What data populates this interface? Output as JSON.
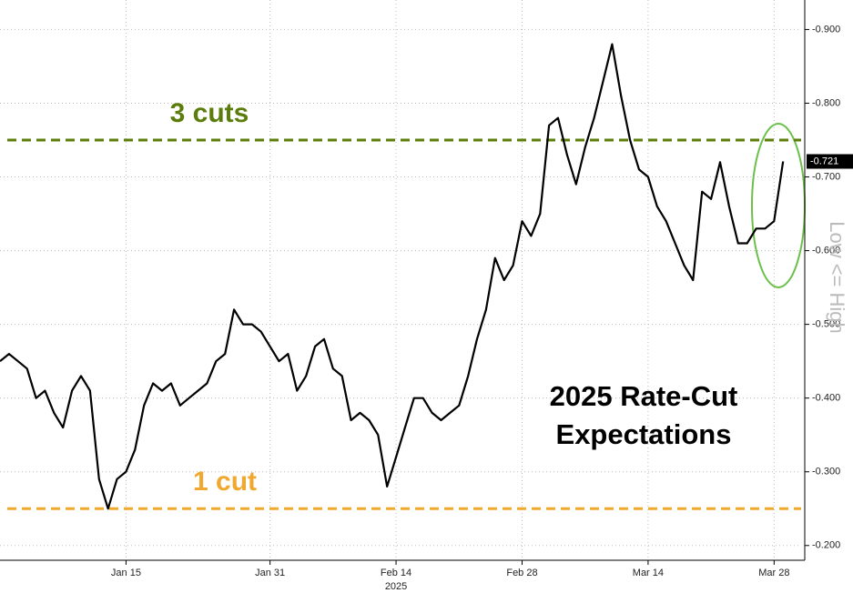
{
  "chart_data": {
    "type": "line",
    "annotation": [
      "2025 Rate-Cut",
      "Expectations"
    ],
    "y_axis_label": "Low <= High",
    "year_label": "2025",
    "current_value_tag": "-0.721",
    "x": [
      "2025-01-01",
      "2025-01-02",
      "2025-01-03",
      "2025-01-04",
      "2025-01-05",
      "2025-01-06",
      "2025-01-07",
      "2025-01-08",
      "2025-01-09",
      "2025-01-10",
      "2025-01-11",
      "2025-01-12",
      "2025-01-13",
      "2025-01-14",
      "2025-01-15",
      "2025-01-16",
      "2025-01-17",
      "2025-01-18",
      "2025-01-19",
      "2025-01-20",
      "2025-01-21",
      "2025-01-22",
      "2025-01-23",
      "2025-01-24",
      "2025-01-25",
      "2025-01-26",
      "2025-01-27",
      "2025-01-28",
      "2025-01-29",
      "2025-01-30",
      "2025-01-31",
      "2025-02-01",
      "2025-02-02",
      "2025-02-03",
      "2025-02-04",
      "2025-02-05",
      "2025-02-06",
      "2025-02-07",
      "2025-02-08",
      "2025-02-09",
      "2025-02-10",
      "2025-02-11",
      "2025-02-12",
      "2025-02-13",
      "2025-02-14",
      "2025-02-15",
      "2025-02-16",
      "2025-02-17",
      "2025-02-18",
      "2025-02-19",
      "2025-02-20",
      "2025-02-21",
      "2025-02-22",
      "2025-02-23",
      "2025-02-24",
      "2025-02-25",
      "2025-02-26",
      "2025-02-27",
      "2025-02-28",
      "2025-03-01",
      "2025-03-02",
      "2025-03-03",
      "2025-03-04",
      "2025-03-05",
      "2025-03-06",
      "2025-03-07",
      "2025-03-08",
      "2025-03-09",
      "2025-03-10",
      "2025-03-11",
      "2025-03-12",
      "2025-03-13",
      "2025-03-14",
      "2025-03-15",
      "2025-03-16",
      "2025-03-17",
      "2025-03-18",
      "2025-03-19",
      "2025-03-20",
      "2025-03-21",
      "2025-03-22",
      "2025-03-23",
      "2025-03-24",
      "2025-03-25",
      "2025-03-26",
      "2025-03-27",
      "2025-03-28",
      "2025-03-29"
    ],
    "series": [
      {
        "color": "#000000",
        "values": [
          -0.45,
          -0.46,
          -0.45,
          -0.44,
          -0.4,
          -0.41,
          -0.38,
          -0.36,
          -0.41,
          -0.43,
          -0.41,
          -0.29,
          -0.25,
          -0.29,
          -0.3,
          -0.33,
          -0.39,
          -0.42,
          -0.41,
          -0.42,
          -0.39,
          -0.4,
          -0.41,
          -0.42,
          -0.45,
          -0.46,
          -0.52,
          -0.5,
          -0.5,
          -0.49,
          -0.47,
          -0.45,
          -0.46,
          -0.41,
          -0.43,
          -0.47,
          -0.48,
          -0.44,
          -0.43,
          -0.37,
          -0.38,
          -0.37,
          -0.35,
          -0.28,
          -0.32,
          -0.36,
          -0.4,
          -0.4,
          -0.38,
          -0.37,
          -0.38,
          -0.39,
          -0.43,
          -0.48,
          -0.52,
          -0.59,
          -0.56,
          -0.58,
          -0.64,
          -0.62,
          -0.65,
          -0.77,
          -0.78,
          -0.73,
          -0.69,
          -0.74,
          -0.78,
          -0.83,
          -0.88,
          -0.81,
          -0.75,
          -0.71,
          -0.7,
          -0.66,
          -0.64,
          -0.61,
          -0.58,
          -0.56,
          -0.68,
          -0.67,
          -0.72,
          -0.66,
          -0.61,
          -0.61,
          -0.63,
          -0.63,
          -0.64,
          -0.721
        ]
      }
    ],
    "reference_lines": [
      {
        "label": "3 cuts",
        "value": -0.75,
        "color": "#5b7d0b"
      },
      {
        "label": "1 cut",
        "value": -0.25,
        "color": "#f0a830"
      }
    ],
    "xlim": [
      "2025-01-01",
      "2025-03-31"
    ],
    "xticks": [
      {
        "value": "2025-01-15",
        "label": "Jan 15"
      },
      {
        "value": "2025-01-31",
        "label": "Jan 31"
      },
      {
        "value": "2025-02-14",
        "label": "Feb 14"
      },
      {
        "value": "2025-02-28",
        "label": "Feb 28"
      },
      {
        "value": "2025-03-14",
        "label": "Mar 14"
      },
      {
        "value": "2025-03-28",
        "label": "Mar 28"
      }
    ],
    "ylim": [
      -0.18,
      -0.94
    ],
    "yticks": [
      {
        "value": -0.2,
        "label": "-0.200"
      },
      {
        "value": -0.3,
        "label": "-0.300"
      },
      {
        "value": -0.4,
        "label": "-0.400"
      },
      {
        "value": -0.5,
        "label": "-0.500"
      },
      {
        "value": -0.6,
        "label": "-0.600"
      },
      {
        "value": -0.7,
        "label": "-0.700"
      },
      {
        "value": -0.8,
        "label": "-0.800"
      },
      {
        "value": -0.9,
        "label": "-0.900"
      }
    ],
    "grid": true
  }
}
